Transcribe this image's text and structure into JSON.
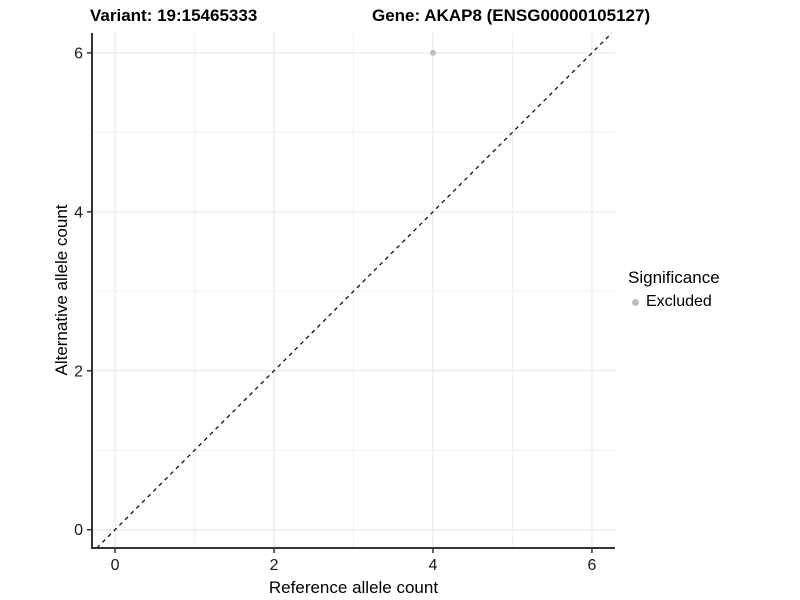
{
  "header": {
    "title_left": "Variant: 19:15465333",
    "title_right": "Gene: AKAP8 (ENSG00000105127)"
  },
  "chart_data": {
    "type": "scatter",
    "title_left": "Variant: 19:15465333",
    "title_right": "Gene: AKAP8 (ENSG00000105127)",
    "xlabel": "Reference allele count",
    "ylabel": "Alternative allele count",
    "xlim": [
      -0.29,
      6.29
    ],
    "ylim": [
      -0.23,
      6.25
    ],
    "xticks": [
      0,
      2,
      4,
      6
    ],
    "yticks": [
      0,
      2,
      4,
      6
    ],
    "xticks_minor": [
      1,
      3,
      5
    ],
    "yticks_minor": [
      1,
      3,
      5
    ],
    "grid": true,
    "identity_line": {
      "style": "dashed",
      "slope": 1,
      "intercept": 0,
      "color": "#000000"
    },
    "series": [
      {
        "name": "Excluded",
        "color": "#bdbdbd",
        "points": [
          {
            "x": 4,
            "y": 6
          }
        ]
      }
    ],
    "legend": {
      "position": "right",
      "title": "Significance",
      "entries": [
        {
          "label": "Excluded",
          "color": "#bdbdbd",
          "marker": "circle"
        }
      ]
    },
    "colors": {
      "axis_line": "#333333",
      "tick_mark": "#333333",
      "grid_major": "#e5e5e5",
      "grid_minor": "#f0f0f0",
      "tick_text": "#1a1a1a"
    }
  }
}
